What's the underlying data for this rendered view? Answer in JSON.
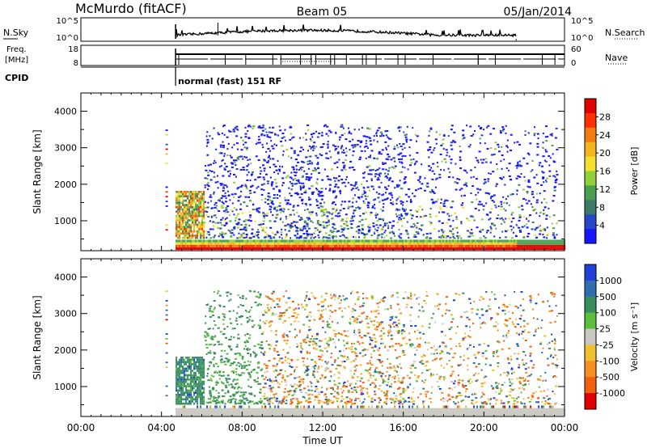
{
  "header": {
    "station": "McMurdo (fitACF)",
    "beam": "Beam 05",
    "date": "05/Jan/2014"
  },
  "noise_panel": {
    "left_label": "N.Sky",
    "right_label": "N.Search",
    "left_ticks": [
      "10^5",
      "10^0"
    ],
    "right_ticks": [
      "10^5",
      "10^0"
    ]
  },
  "freq_panel": {
    "left_label_1": "Freq.",
    "left_label_2": "[MHz]",
    "right_label": "Nave",
    "left_ticks": [
      "18",
      "8"
    ],
    "right_ticks": [
      "60",
      "0"
    ]
  },
  "cpid": {
    "label": "CPID",
    "text": "normal (fast) 151 RF"
  },
  "time_axis": {
    "xlabel": "Time UT",
    "ticks": [
      "00:00",
      "04:00",
      "08:00",
      "12:00",
      "16:00",
      "20:00",
      "00:00"
    ]
  },
  "chart_data": [
    {
      "type": "heatmap",
      "name": "power",
      "ylabel": "Slant Range [km]",
      "xlabel": "Time UT",
      "x_hours_range": [
        0,
        24
      ],
      "ylim": [
        180,
        4500
      ],
      "yticks": [
        "1000",
        "2000",
        "3000",
        "4000"
      ],
      "colorbar_label": "Power [dB]",
      "colorbar_ticks": [
        "4",
        "8",
        "12",
        "16",
        "20",
        "24",
        "28"
      ],
      "colorbar_colors": [
        "#1717ff",
        "#2848c8",
        "#3e7a6a",
        "#4aa050",
        "#8fd13a",
        "#f0e030",
        "#f5b520",
        "#f57a10",
        "#ff3000",
        "#e00000"
      ],
      "colorbar_range": [
        0,
        32
      ],
      "data_start_hour": 4.7,
      "data_end_hour": 24
    },
    {
      "type": "heatmap",
      "name": "velocity",
      "ylabel": "Slant Range [km]",
      "xlabel": "Time UT",
      "x_hours_range": [
        0,
        24
      ],
      "ylim": [
        180,
        4500
      ],
      "yticks": [
        "1000",
        "2000",
        "3000",
        "4000"
      ],
      "colorbar_label": "Velocity [m s⁻¹]",
      "colorbar_ticks": [
        "1000",
        "500",
        "100",
        "25",
        "-25",
        "-100",
        "-500",
        "-1000"
      ],
      "colorbar_colors": [
        "#2040d8",
        "#2f6fb0",
        "#3a8e5e",
        "#5abf3a",
        "#c8c8c0",
        "#f0c030",
        "#f59020",
        "#f06010",
        "#e00000"
      ],
      "data_start_hour": 4.7,
      "data_end_hour": 24
    }
  ]
}
